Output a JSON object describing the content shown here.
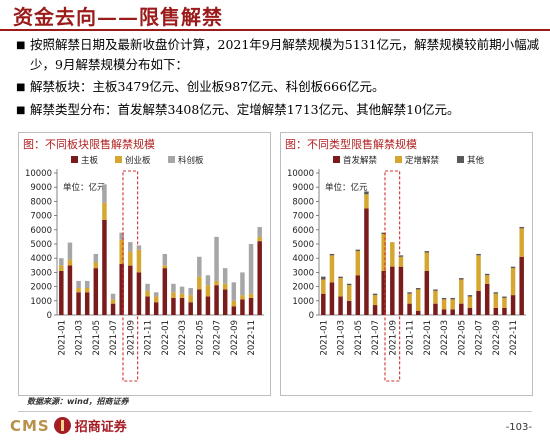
{
  "header": {
    "title": "资金去向——限售解禁"
  },
  "bullets": [
    "按照解禁日期及最新收盘价计算，2021年9月解禁规模为5131亿元，解禁规模较前期小幅减少，9月解禁规模分布如下：",
    "解禁板块：主板3479亿元、创业板987亿元、科创板666亿元。",
    "解禁类型分布：首发解禁3408亿元、定增解禁1713亿元、其他解禁10亿元。"
  ],
  "bullet_mark": "■",
  "chart_data": [
    {
      "type": "bar",
      "stacked": true,
      "title": "图：不同板块限售解禁规模",
      "unit_label": "单位：亿元",
      "ylim": [
        0,
        10000
      ],
      "yticks": [
        0,
        1000,
        2000,
        3000,
        4000,
        5000,
        6000,
        7000,
        8000,
        9000,
        10000
      ],
      "categories": [
        "2021-01",
        "2021-02",
        "2021-03",
        "2021-04",
        "2021-05",
        "2021-06",
        "2021-07",
        "2021-08",
        "2021-09",
        "2021-10",
        "2021-11",
        "2021-12",
        "2022-01",
        "2022-02",
        "2022-03",
        "2022-04",
        "2022-05",
        "2022-06",
        "2022-07",
        "2022-08",
        "2022-09",
        "2022-10",
        "2022-11",
        "2022-12"
      ],
      "xtick_labels": [
        "2021-01",
        "2021-03",
        "2021-05",
        "2021-07",
        "2021-09",
        "2021-11",
        "2022-01",
        "2022-03",
        "2022-05",
        "2022-07",
        "2022-09",
        "2022-11"
      ],
      "legend_position": "top",
      "highlight_category": "2021-09",
      "series": [
        {
          "name": "主板",
          "color": "#7b1c1c",
          "values": [
            3100,
            3500,
            1600,
            1600,
            3300,
            6700,
            800,
            3600,
            3479,
            3000,
            1300,
            900,
            3300,
            1200,
            1200,
            900,
            1800,
            1300,
            2100,
            1800,
            600,
            1100,
            1200,
            5200
          ]
        },
        {
          "name": "创业板",
          "color": "#d6a730",
          "values": [
            400,
            400,
            300,
            300,
            400,
            1200,
            300,
            1700,
            987,
            1600,
            400,
            400,
            200,
            400,
            300,
            500,
            900,
            800,
            300,
            400,
            400,
            300,
            300,
            300
          ]
        },
        {
          "name": "科创板",
          "color": "#a6a6a6",
          "values": [
            500,
            1200,
            500,
            500,
            600,
            1300,
            400,
            500,
            666,
            300,
            500,
            300,
            800,
            600,
            500,
            500,
            1400,
            700,
            3100,
            1100,
            1300,
            1600,
            3500,
            700
          ]
        }
      ]
    },
    {
      "type": "bar",
      "stacked": true,
      "title": "图：不同类型限售解禁规模",
      "unit_label": "单位：亿元",
      "ylim": [
        0,
        10000
      ],
      "yticks": [
        0,
        1000,
        2000,
        3000,
        4000,
        5000,
        6000,
        7000,
        8000,
        9000,
        10000
      ],
      "categories": [
        "2021-01",
        "2021-02",
        "2021-03",
        "2021-04",
        "2021-05",
        "2021-06",
        "2021-07",
        "2021-08",
        "2021-09",
        "2021-10",
        "2021-11",
        "2021-12",
        "2022-01",
        "2022-02",
        "2022-03",
        "2022-04",
        "2022-05",
        "2022-06",
        "2022-07",
        "2022-08",
        "2022-09",
        "2022-10",
        "2022-11",
        "2022-12"
      ],
      "xtick_labels": [
        "2021-01",
        "2021-03",
        "2021-05",
        "2021-07",
        "2021-09",
        "2021-11",
        "2022-01",
        "2022-03",
        "2022-05",
        "2022-07",
        "2022-09",
        "2022-11"
      ],
      "legend_position": "top",
      "highlight_category": "2021-09",
      "series": [
        {
          "name": "首发解禁",
          "color": "#7b1c1c",
          "values": [
            1500,
            2300,
            1300,
            1000,
            2800,
            7500,
            700,
            3100,
            3408,
            3400,
            800,
            300,
            3100,
            800,
            400,
            400,
            800,
            500,
            1700,
            2200,
            500,
            500,
            1400,
            4100
          ]
        },
        {
          "name": "定增解禁",
          "color": "#d6a730",
          "values": [
            1000,
            1900,
            1300,
            1100,
            1700,
            1000,
            700,
            2600,
            1713,
            700,
            700,
            1500,
            1300,
            900,
            700,
            700,
            1700,
            800,
            2500,
            600,
            1000,
            700,
            1900,
            2000
          ]
        },
        {
          "name": "其他",
          "color": "#595959",
          "values": [
            200,
            100,
            100,
            100,
            100,
            200,
            100,
            100,
            10,
            100,
            100,
            100,
            100,
            100,
            100,
            100,
            100,
            100,
            100,
            100,
            100,
            100,
            100,
            100
          ]
        }
      ]
    }
  ],
  "footer": {
    "source": "数据来源：wind，招商证券",
    "logo_latin": "CMS",
    "logo_cn": "招商证券",
    "page_number": "-103-"
  }
}
